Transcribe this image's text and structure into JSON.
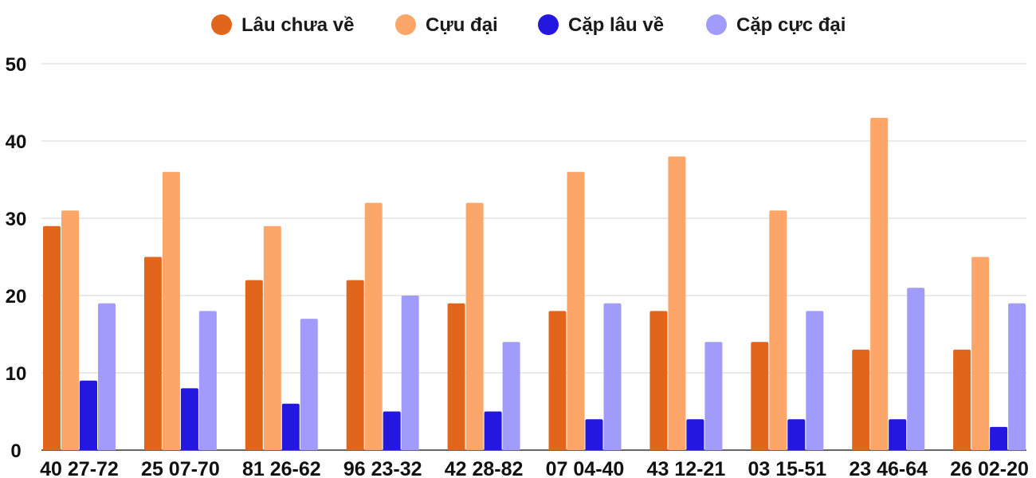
{
  "chart_data": {
    "type": "bar",
    "categories": [
      "40 27-72",
      "25 07-70",
      "81 26-62",
      "96 23-32",
      "42 28-82",
      "07 04-40",
      "43 12-21",
      "03 15-51",
      "23 46-64",
      "26 02-20"
    ],
    "series": [
      {
        "name": "Lâu chưa về",
        "color": "#e2651c",
        "values": [
          29,
          25,
          22,
          22,
          19,
          18,
          18,
          14,
          13,
          13
        ]
      },
      {
        "name": "Cựu đại",
        "color": "#fda66a",
        "values": [
          31,
          36,
          29,
          32,
          32,
          36,
          38,
          31,
          43,
          25
        ]
      },
      {
        "name": "Cặp lâu về",
        "color": "#2317e0",
        "values": [
          9,
          8,
          6,
          5,
          5,
          4,
          4,
          4,
          4,
          3
        ]
      },
      {
        "name": "Cặp cực đại",
        "color": "#a19cfb",
        "values": [
          19,
          18,
          17,
          20,
          14,
          19,
          14,
          18,
          21,
          19
        ]
      }
    ],
    "ylim": [
      0,
      50
    ],
    "yticks": [
      0,
      10,
      20,
      30,
      40,
      50
    ],
    "grid": true,
    "legend_position": "top-center"
  }
}
